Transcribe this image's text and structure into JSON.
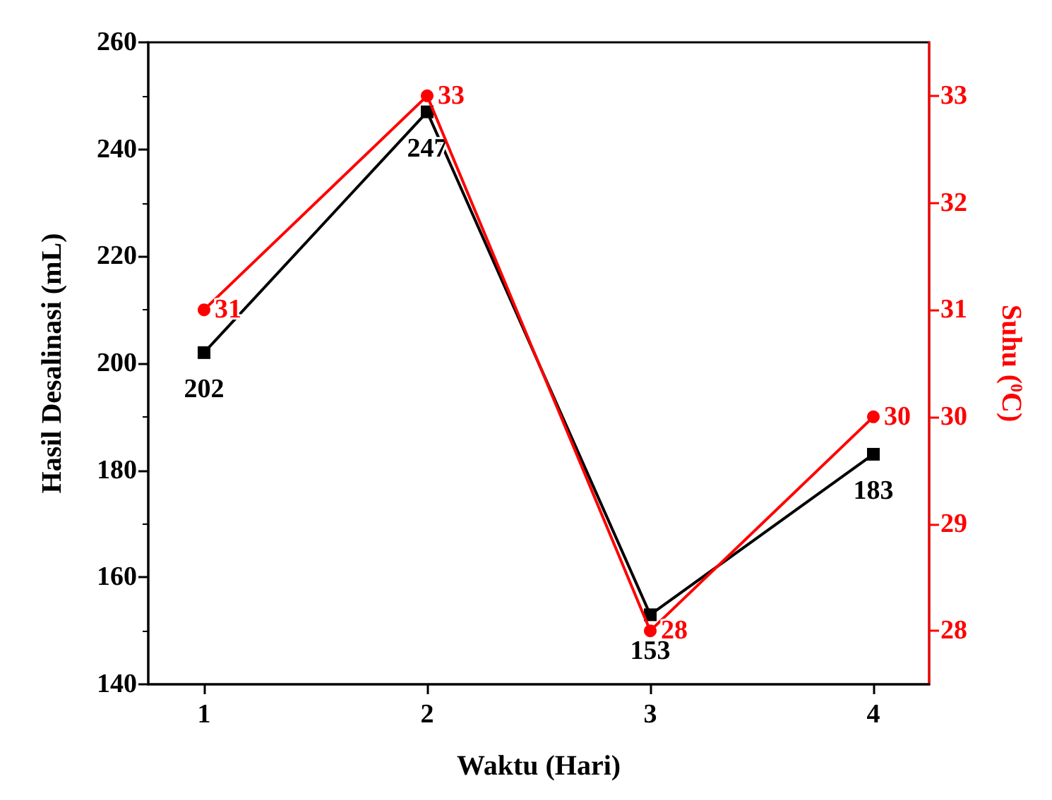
{
  "chart_data": {
    "type": "line",
    "xlabel": "Waktu (Hari)",
    "ylabel": "Hasil Desalinasi (mL)",
    "y2label": "Suhu ($^{0}$C)",
    "x": [
      1,
      2,
      3,
      4
    ],
    "series": [
      {
        "color": "#000000",
        "values": [
          202,
          247,
          153,
          183
        ],
        "marker": "square"
      },
      {
        "color": "#ff0000",
        "values": [
          31,
          33,
          28,
          30
        ],
        "marker": "circle",
        "axis": "y2"
      }
    ],
    "xlim": [
      0.75,
      4.25
    ],
    "xticks": [
      1,
      2,
      3,
      4
    ],
    "ylim": [
      140,
      260
    ],
    "yticks": [
      140,
      160,
      180,
      200,
      220,
      240,
      260
    ],
    "y2lim": [
      27.5,
      33.5
    ],
    "y2ticks": [
      28,
      29,
      30,
      31,
      32,
      33
    ],
    "data_labels": true,
    "grid": false,
    "line_style": "solid"
  }
}
